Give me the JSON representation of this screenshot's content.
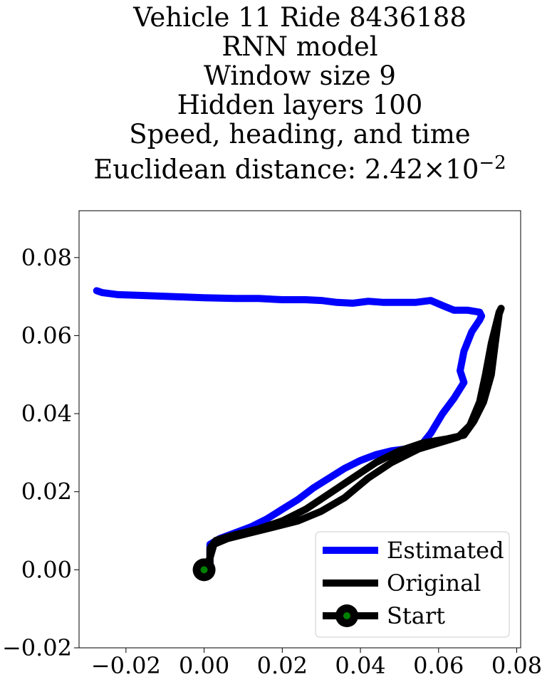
{
  "chart_data": {
    "type": "line",
    "title_lines": [
      "Vehicle 11 Ride 8436188",
      "RNN model",
      "Window size 9",
      "Hidden layers 100",
      "Speed, heading, and time"
    ],
    "title_last_prefix": "Euclidean distance: ",
    "title_last_value": "2.42×10",
    "title_last_exponent": "−2",
    "xlim": [
      -0.032,
      0.081
    ],
    "ylim": [
      -0.02,
      0.092
    ],
    "xticks": [
      -0.02,
      0.0,
      0.02,
      0.04,
      0.06,
      0.08
    ],
    "xtick_labels": [
      "−0.02",
      "0.00",
      "0.02",
      "0.04",
      "0.06",
      "0.08"
    ],
    "yticks": [
      -0.02,
      0.0,
      0.02,
      0.04,
      0.06,
      0.08
    ],
    "ytick_labels": [
      "−0.02",
      "0.00",
      "0.02",
      "0.04",
      "0.06",
      "0.08"
    ],
    "grid": false,
    "legend": "lower-right",
    "series": [
      {
        "name": "Estimated",
        "color": "#0000ff",
        "points": [
          [
            0.0,
            0.0
          ],
          [
            0.0015,
            0.0015
          ],
          [
            0.0015,
            0.0065
          ],
          [
            0.004,
            0.008
          ],
          [
            0.008,
            0.0095
          ],
          [
            0.012,
            0.011
          ],
          [
            0.016,
            0.013
          ],
          [
            0.02,
            0.0155
          ],
          [
            0.024,
            0.018
          ],
          [
            0.028,
            0.021
          ],
          [
            0.032,
            0.0235
          ],
          [
            0.036,
            0.026
          ],
          [
            0.04,
            0.028
          ],
          [
            0.044,
            0.0295
          ],
          [
            0.048,
            0.0305
          ],
          [
            0.052,
            0.031
          ],
          [
            0.056,
            0.0325
          ],
          [
            0.058,
            0.035
          ],
          [
            0.061,
            0.04
          ],
          [
            0.064,
            0.044
          ],
          [
            0.0665,
            0.048
          ],
          [
            0.0655,
            0.051
          ],
          [
            0.0665,
            0.056
          ],
          [
            0.0685,
            0.061
          ],
          [
            0.0705,
            0.064
          ],
          [
            0.071,
            0.065
          ],
          [
            0.0705,
            0.066
          ],
          [
            0.0675,
            0.0665
          ],
          [
            0.064,
            0.0665
          ],
          [
            0.0615,
            0.0675
          ],
          [
            0.058,
            0.069
          ],
          [
            0.054,
            0.0685
          ],
          [
            0.05,
            0.0685
          ],
          [
            0.046,
            0.0685
          ],
          [
            0.042,
            0.0688
          ],
          [
            0.038,
            0.0683
          ],
          [
            0.034,
            0.0685
          ],
          [
            0.03,
            0.069
          ],
          [
            0.026,
            0.0692
          ],
          [
            0.02,
            0.0692
          ],
          [
            0.014,
            0.0695
          ],
          [
            0.008,
            0.0695
          ],
          [
            0.0,
            0.0697
          ],
          [
            -0.008,
            0.07
          ],
          [
            -0.016,
            0.0703
          ],
          [
            -0.022,
            0.0705
          ],
          [
            -0.026,
            0.071
          ],
          [
            -0.0275,
            0.0715
          ]
        ]
      },
      {
        "name": "Original",
        "color": "#000000",
        "points": [
          [
            0.0,
            0.0
          ],
          [
            0.0015,
            0.0015
          ],
          [
            0.0015,
            0.0055
          ],
          [
            0.003,
            0.0075
          ],
          [
            0.008,
            0.009
          ],
          [
            0.014,
            0.0105
          ],
          [
            0.02,
            0.0125
          ],
          [
            0.026,
            0.0155
          ],
          [
            0.032,
            0.0195
          ],
          [
            0.038,
            0.0235
          ],
          [
            0.044,
            0.0275
          ],
          [
            0.05,
            0.0305
          ],
          [
            0.056,
            0.0325
          ],
          [
            0.062,
            0.0335
          ],
          [
            0.0665,
            0.0345
          ],
          [
            0.069,
            0.038
          ],
          [
            0.0715,
            0.043
          ],
          [
            0.0735,
            0.05
          ],
          [
            0.0745,
            0.058
          ],
          [
            0.0755,
            0.0655
          ],
          [
            0.076,
            0.067
          ],
          [
            0.0755,
            0.066
          ],
          [
            0.0735,
            0.058
          ],
          [
            0.072,
            0.05
          ],
          [
            0.0705,
            0.043
          ],
          [
            0.068,
            0.037
          ],
          [
            0.065,
            0.034
          ],
          [
            0.06,
            0.0325
          ],
          [
            0.055,
            0.031
          ],
          [
            0.048,
            0.0275
          ],
          [
            0.042,
            0.0235
          ],
          [
            0.036,
            0.0185
          ],
          [
            0.03,
            0.015
          ],
          [
            0.024,
            0.0125
          ],
          [
            0.018,
            0.011
          ],
          [
            0.012,
            0.0095
          ],
          [
            0.006,
            0.008
          ],
          [
            0.0025,
            0.0065
          ],
          [
            0.0015,
            0.003
          ],
          [
            0.0,
            0.0
          ]
        ]
      },
      {
        "name": "Start",
        "color": "#000000",
        "marker_face": "#008000",
        "points": [
          [
            0.0,
            0.0
          ]
        ]
      }
    ]
  }
}
